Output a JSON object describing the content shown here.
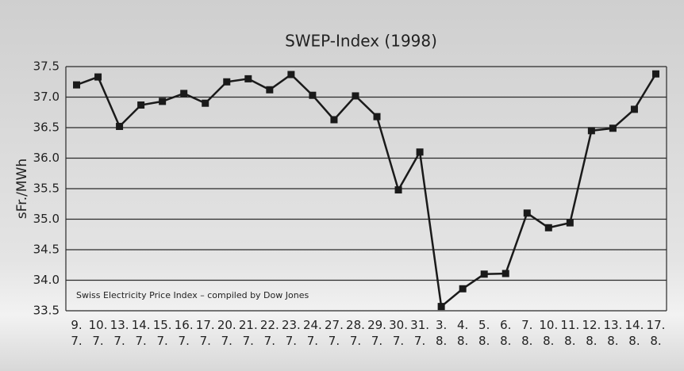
{
  "chart_data": {
    "type": "line",
    "title": "SWEP-Index (1998)",
    "y_label": "sFr./MWh",
    "annotation": "Swiss Electricity Price Index – compiled by Dow Jones",
    "categories": [
      "9. 7.",
      "10. 7.",
      "13. 7.",
      "14. 7.",
      "15. 7.",
      "16. 7.",
      "17. 7.",
      "20. 7.",
      "21. 7.",
      "22. 7.",
      "23. 7.",
      "24. 7.",
      "27. 7.",
      "28. 7.",
      "29. 7.",
      "30. 7.",
      "31. 7.",
      "3. 8.",
      "4. 8.",
      "5. 8.",
      "6. 8.",
      "7. 8.",
      "10. 8.",
      "11. 8.",
      "12. 8.",
      "13. 8.",
      "14. 8.",
      "17. 8."
    ],
    "values": [
      37.2,
      37.33,
      36.52,
      36.87,
      36.93,
      37.06,
      36.9,
      37.25,
      37.3,
      37.12,
      37.37,
      37.03,
      36.63,
      37.02,
      36.68,
      35.48,
      36.1,
      33.57,
      33.86,
      34.1,
      34.11,
      35.1,
      34.86,
      34.94,
      36.45,
      36.49,
      36.8,
      37.38
    ],
    "color": "#1a1a1a",
    "ylim": [
      33.5,
      37.5
    ],
    "yticks": [
      33.5,
      {
        "value": 34,
        "label": "34.0"
      },
      34.5,
      {
        "value": 35,
        "label": "35.0"
      },
      35.5,
      {
        "value": 36,
        "label": "36.0"
      },
      36.5,
      {
        "value": 37,
        "label": "37.0"
      },
      37.5
    ],
    "grid": true
  }
}
